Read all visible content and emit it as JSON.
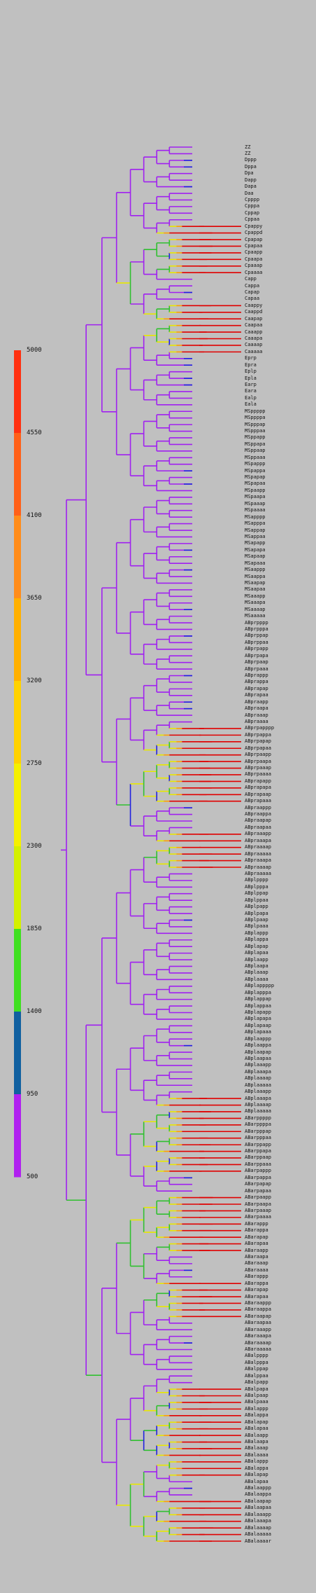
{
  "legend": {
    "ticks": [
      "5000",
      "4550",
      "4100",
      "3650",
      "3200",
      "2750",
      "2300",
      "1850",
      "1400",
      "950",
      "500"
    ],
    "bands": [
      {
        "color": "#ff3010"
      },
      {
        "color": "#ff6018"
      },
      {
        "color": "#ff8c1a"
      },
      {
        "color": "#ffb000"
      },
      {
        "color": "#ffd200"
      },
      {
        "color": "#f5f000"
      },
      {
        "color": "#d4f000"
      },
      {
        "color": "#40e020"
      },
      {
        "color": "#1060a0"
      },
      {
        "color": "#b020f0"
      }
    ]
  },
  "palette": {
    "purple": "#a020f0",
    "blue": "#2020e0",
    "green": "#30c030",
    "yellow": "#e8e800",
    "orange": "#ffa000",
    "red": "#e00000"
  },
  "leaves": [
    {
      "label": "ZZ"
    },
    {
      "label": "ZZ"
    },
    {
      "label": "Dppp"
    },
    {
      "label": "Dppa"
    },
    {
      "label": "Dpa"
    },
    {
      "label": "Dapp"
    },
    {
      "label": "Dapa"
    },
    {
      "label": "Daa"
    },
    {
      "label": "Cpppp"
    },
    {
      "label": "Cpppa"
    },
    {
      "label": "Cppap"
    },
    {
      "label": "Cppaa"
    },
    {
      "label": "Cpappy"
    },
    {
      "label": "Cpappd"
    },
    {
      "label": "Cpapap"
    },
    {
      "label": "Cpapaa"
    },
    {
      "label": "Cpaapp"
    },
    {
      "label": "Cpaapa"
    },
    {
      "label": "Cpaaap"
    },
    {
      "label": "Cpaaaa"
    },
    {
      "label": "Capp"
    },
    {
      "label": "Cappa"
    },
    {
      "label": "Capap"
    },
    {
      "label": "Capaa"
    },
    {
      "label": "Caappy"
    },
    {
      "label": "Caappd"
    },
    {
      "label": "Caapap"
    },
    {
      "label": "Caapaa"
    },
    {
      "label": "Caaapp"
    },
    {
      "label": "Caaapa"
    },
    {
      "label": "Caaaap"
    },
    {
      "label": "Caaaaa"
    },
    {
      "label": "Eprp"
    },
    {
      "label": "Epra"
    },
    {
      "label": "Eplp"
    },
    {
      "label": "Epla"
    },
    {
      "label": "Earp"
    },
    {
      "label": "Eara"
    },
    {
      "label": "Ealp"
    },
    {
      "label": "Eala"
    },
    {
      "label": "MSppppp"
    },
    {
      "label": "MSppppa"
    },
    {
      "label": "MSpppap"
    },
    {
      "label": "MSpppaa"
    },
    {
      "label": "MSppapp"
    },
    {
      "label": "MSppapa"
    },
    {
      "label": "MSppaap"
    },
    {
      "label": "MSppaaa"
    },
    {
      "label": "MSpappp"
    },
    {
      "label": "MSpappa"
    },
    {
      "label": "MSpapap"
    },
    {
      "label": "MSpapaa"
    },
    {
      "label": "MSpaapp"
    },
    {
      "label": "MSpaapa"
    },
    {
      "label": "MSpaaap"
    },
    {
      "label": "MSpaaaa"
    },
    {
      "label": "MSapppp"
    },
    {
      "label": "MSapppa"
    },
    {
      "label": "MSappap"
    },
    {
      "label": "MSappaa"
    },
    {
      "label": "MSapapp"
    },
    {
      "label": "MSapapa"
    },
    {
      "label": "MSapaap"
    },
    {
      "label": "MSapaaa"
    },
    {
      "label": "MSaappp"
    },
    {
      "label": "MSaappa"
    },
    {
      "label": "MSaapap"
    },
    {
      "label": "MSaapaa"
    },
    {
      "label": "MSaaapp"
    },
    {
      "label": "MSaaapa"
    },
    {
      "label": "MSaaaap"
    },
    {
      "label": "MSaaaaa"
    },
    {
      "label": "ABprpppp"
    },
    {
      "label": "ABprpppa"
    },
    {
      "label": "ABprppap"
    },
    {
      "label": "ABprppaa"
    },
    {
      "label": "ABprpapp"
    },
    {
      "label": "ABprpapa"
    },
    {
      "label": "ABprpaap"
    },
    {
      "label": "ABprpaaa"
    },
    {
      "label": "ABprappp"
    },
    {
      "label": "ABprappa"
    },
    {
      "label": "ABprapap"
    },
    {
      "label": "ABprapaa"
    },
    {
      "label": "ABpraapp"
    },
    {
      "label": "ABpraapa"
    },
    {
      "label": "ABpraaap"
    },
    {
      "label": "ABpraaaa"
    },
    {
      "label": "ABprpapppp"
    },
    {
      "label": "ABprpappa"
    },
    {
      "label": "ABprpapap"
    },
    {
      "label": "ABprpapaa"
    },
    {
      "label": "ABprpaapp"
    },
    {
      "label": "ABprpaapa"
    },
    {
      "label": "ABprpaaap"
    },
    {
      "label": "ABprpaaaa"
    },
    {
      "label": "ABprapapp"
    },
    {
      "label": "ABprapapa"
    },
    {
      "label": "ABprapaap"
    },
    {
      "label": "ABprapaaa"
    },
    {
      "label": "ABpraappp"
    },
    {
      "label": "ABpraappa"
    },
    {
      "label": "ABpraapap"
    },
    {
      "label": "ABpraapaa"
    },
    {
      "label": "ABpraaapp"
    },
    {
      "label": "ABpraaapa"
    },
    {
      "label": "ABpraaaap"
    },
    {
      "label": "ABpraaaaa"
    },
    {
      "label": "ABpraaapa"
    },
    {
      "label": "ABpraaaap"
    },
    {
      "label": "ABpraaaaa"
    },
    {
      "label": "ABplpppp"
    },
    {
      "label": "ABplpppa"
    },
    {
      "label": "ABplppap"
    },
    {
      "label": "ABplppaa"
    },
    {
      "label": "ABplpapp"
    },
    {
      "label": "ABplpapa"
    },
    {
      "label": "ABplpaap"
    },
    {
      "label": "ABplpaaa"
    },
    {
      "label": "ABplappp"
    },
    {
      "label": "ABplappa"
    },
    {
      "label": "ABplapap"
    },
    {
      "label": "ABplapaa"
    },
    {
      "label": "ABplaapp"
    },
    {
      "label": "ABplaapa"
    },
    {
      "label": "ABplaaap"
    },
    {
      "label": "ABplaaaa"
    },
    {
      "label": "ABplappppp"
    },
    {
      "label": "ABplapppa"
    },
    {
      "label": "ABplappap"
    },
    {
      "label": "ABplappaa"
    },
    {
      "label": "ABplapapp"
    },
    {
      "label": "ABplapapa"
    },
    {
      "label": "ABplapaap"
    },
    {
      "label": "ABplapaaa"
    },
    {
      "label": "ABplaappp"
    },
    {
      "label": "ABplaappa"
    },
    {
      "label": "ABplaapap"
    },
    {
      "label": "ABplaapaa"
    },
    {
      "label": "ABplaaapp"
    },
    {
      "label": "ABplaaapa"
    },
    {
      "label": "ABplaaaap"
    },
    {
      "label": "ABplaaaaa"
    },
    {
      "label": "ABplaaapp"
    },
    {
      "label": "ABplaaapa"
    },
    {
      "label": "ABplaaaap"
    },
    {
      "label": "ABplaaaaa"
    },
    {
      "label": "ABarppppp"
    },
    {
      "label": "ABarppppa"
    },
    {
      "label": "ABarpppap"
    },
    {
      "label": "ABarpppaa"
    },
    {
      "label": "ABarppapp"
    },
    {
      "label": "ABarppapa"
    },
    {
      "label": "ABarppaap"
    },
    {
      "label": "ABarppaaa"
    },
    {
      "label": "ABarpappp"
    },
    {
      "label": "ABarpappa"
    },
    {
      "label": "ABarpapap"
    },
    {
      "label": "ABarpapaa"
    },
    {
      "label": "ABarpaapp"
    },
    {
      "label": "ABarpaapa"
    },
    {
      "label": "ABarpaaap"
    },
    {
      "label": "ABarpaaaa"
    },
    {
      "label": "ABarappp"
    },
    {
      "label": "ABarappa"
    },
    {
      "label": "ABarapap"
    },
    {
      "label": "ABarapaa"
    },
    {
      "label": "ABaraapp"
    },
    {
      "label": "ABaraapa"
    },
    {
      "label": "ABaraaap"
    },
    {
      "label": "ABaraaaa"
    },
    {
      "label": "ABarappp"
    },
    {
      "label": "ABarappa"
    },
    {
      "label": "ABarapap"
    },
    {
      "label": "ABarapaa"
    },
    {
      "label": "ABaraappp"
    },
    {
      "label": "ABaraappa"
    },
    {
      "label": "ABaraapap"
    },
    {
      "label": "ABaraapaa"
    },
    {
      "label": "ABaraaapp"
    },
    {
      "label": "ABaraaapa"
    },
    {
      "label": "ABaraaaap"
    },
    {
      "label": "ABaraaaaa"
    },
    {
      "label": "ABalpppp"
    },
    {
      "label": "ABalpppa"
    },
    {
      "label": "ABalppap"
    },
    {
      "label": "ABalppaa"
    },
    {
      "label": "ABalpapp"
    },
    {
      "label": "ABalpapa"
    },
    {
      "label": "ABalpaap"
    },
    {
      "label": "ABalpaaa"
    },
    {
      "label": "ABalappp"
    },
    {
      "label": "ABalappa"
    },
    {
      "label": "ABalapap"
    },
    {
      "label": "ABalapaa"
    },
    {
      "label": "ABalaapp"
    },
    {
      "label": "ABalaapa"
    },
    {
      "label": "ABalaaap"
    },
    {
      "label": "ABalaaaa"
    },
    {
      "label": "ABalappp"
    },
    {
      "label": "ABalappa"
    },
    {
      "label": "ABalapap"
    },
    {
      "label": "ABalapaa"
    },
    {
      "label": "ABalaappp"
    },
    {
      "label": "ABalaappa"
    },
    {
      "label": "ABalaapap"
    },
    {
      "label": "ABalaapaa"
    },
    {
      "label": "ABalaaapp"
    },
    {
      "label": "ABalaaapa"
    },
    {
      "label": "ABalaaaap"
    },
    {
      "label": "ABalaaaaa"
    },
    {
      "label": "ABalaaaar"
    }
  ]
}
